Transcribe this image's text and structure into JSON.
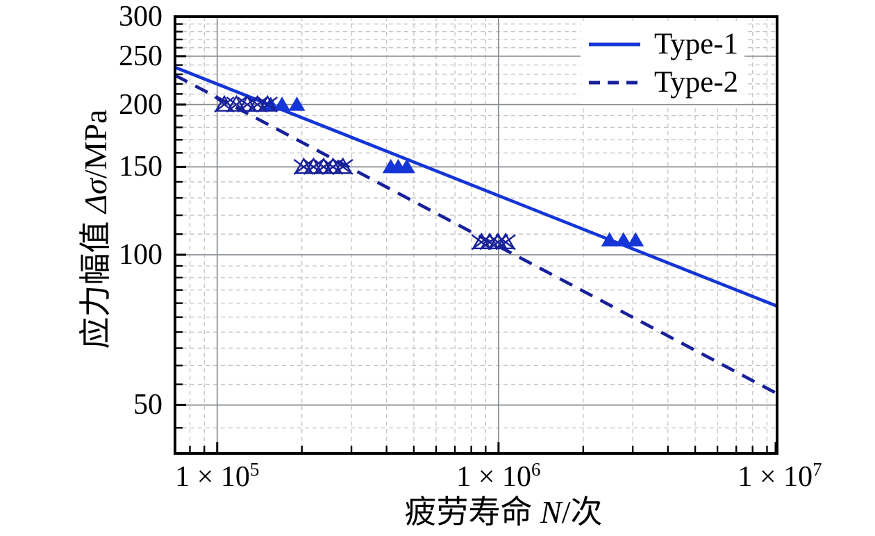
{
  "chart_data": {
    "type": "scatter",
    "title": "",
    "xlabel": "疲劳寿命 N/次",
    "ylabel": "应力幅值 Δσ/MPa",
    "xlabel_parts": {
      "prefix": "疲劳寿命 ",
      "italic": "N",
      "suffix": "/次"
    },
    "ylabel_parts": {
      "prefix": "应力幅值 ",
      "italic": "Δσ",
      "suffix": "/MPa"
    },
    "x_scale": "log",
    "y_scale": "log",
    "xlim": [
      70800,
      9775000
    ],
    "ylim": [
      40,
      300
    ],
    "x_major_ticks": [
      {
        "value": 100000,
        "mantissa": "1 × 10",
        "exp": "5"
      },
      {
        "value": 1000000,
        "mantissa": "1 × 10",
        "exp": "6"
      },
      {
        "value": 10000000,
        "mantissa": "1 × 10",
        "exp": "7"
      }
    ],
    "x_minor_ticks": [
      80000,
      90000,
      200000,
      300000,
      400000,
      500000,
      600000,
      700000,
      800000,
      900000,
      2000000,
      3000000,
      4000000,
      5000000,
      6000000,
      7000000,
      8000000,
      9000000
    ],
    "y_major_ticks": [
      300,
      250,
      200,
      150,
      100,
      50
    ],
    "y_minor_ticks": [
      290,
      280,
      270,
      260,
      240,
      230,
      220,
      210,
      190,
      180,
      170,
      160,
      140,
      130,
      120,
      110,
      95,
      90,
      85,
      80,
      75,
      70,
      65,
      60,
      55,
      45
    ],
    "grid": {
      "major_color": "#878c93",
      "minor_color": "#c3c3c3",
      "minor_style": "dashed",
      "grid_on": true
    },
    "frame_color": "#000000",
    "legend": {
      "position": "top-right",
      "entries": [
        "Type-1",
        "Type-2"
      ]
    },
    "series": [
      {
        "name": "Type-1",
        "color": "#1535d6",
        "line_style": "solid",
        "marker": "filled-up-triangle",
        "fit_line": {
          "x": [
            70800,
            9775000
          ],
          "y": [
            237.5,
            78.9
          ]
        },
        "points": [
          [
            155000,
            200
          ],
          [
            170000,
            200
          ],
          [
            192000,
            200
          ],
          [
            414000,
            150
          ],
          [
            440000,
            150
          ],
          [
            472000,
            150
          ],
          [
            2480000,
            107
          ],
          [
            2780000,
            107
          ],
          [
            3070000,
            107
          ]
        ]
      },
      {
        "name": "Type-2",
        "color": "#18209a",
        "line_style": "dashed",
        "marker": "open-up-triangle-with-x",
        "fit_line": {
          "x": [
            70800,
            9775000
          ],
          "y": [
            229.0,
            52.7
          ]
        },
        "points": [
          [
            106000,
            200
          ],
          [
            117000,
            200
          ],
          [
            128000,
            200
          ],
          [
            139000,
            200
          ],
          [
            151000,
            200
          ],
          [
            203000,
            150
          ],
          [
            220000,
            150
          ],
          [
            239000,
            150
          ],
          [
            258000,
            150
          ],
          [
            280000,
            150
          ],
          [
            870000,
            106
          ],
          [
            930000,
            106
          ],
          [
            995000,
            106
          ],
          [
            1060000,
            106
          ]
        ]
      }
    ]
  }
}
